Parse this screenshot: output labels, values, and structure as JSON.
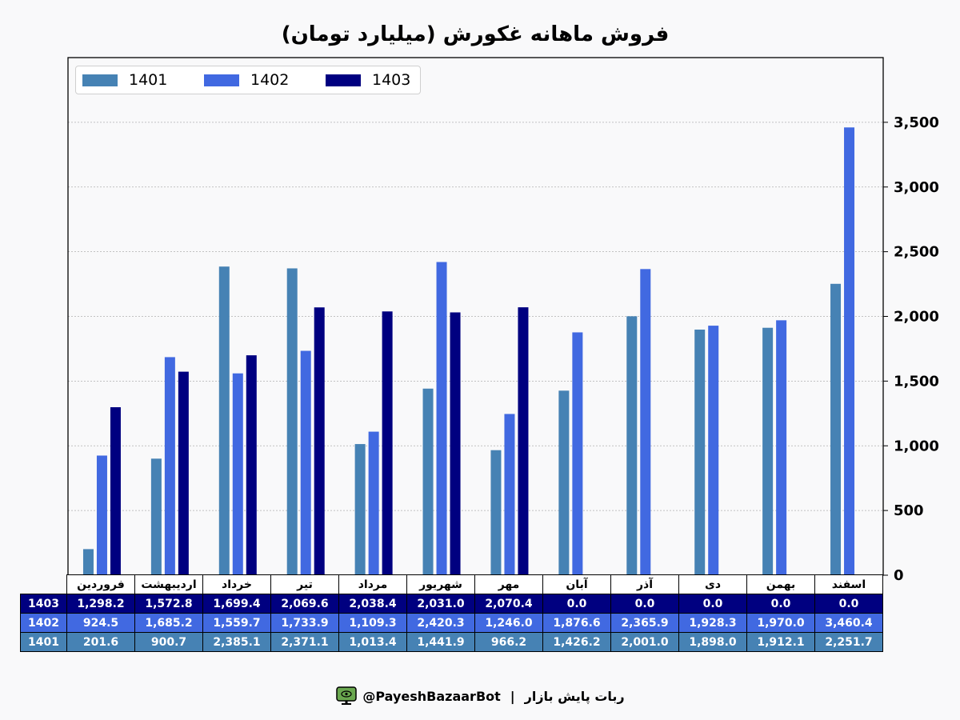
{
  "chart_data": {
    "type": "bar",
    "title": "فروش ماهانه غکورش (میلیارد تومان)",
    "categories": [
      "فروردین",
      "اردیبهشت",
      "خرداد",
      "تیر",
      "مرداد",
      "شهریور",
      "مهر",
      "آبان",
      "آذر",
      "دی",
      "بهمن",
      "اسفند"
    ],
    "series": [
      {
        "name": "1401",
        "color": "#4682b4",
        "values": [
          201.6,
          900.7,
          2385.1,
          2371.1,
          1013.4,
          1441.9,
          966.2,
          1426.2,
          2001.0,
          1898.0,
          1912.1,
          2251.7
        ]
      },
      {
        "name": "1402",
        "color": "#4169e1",
        "values": [
          924.5,
          1685.2,
          1559.7,
          1733.9,
          1109.3,
          2420.3,
          1246.0,
          1876.6,
          2365.9,
          1928.3,
          1970.0,
          3460.4
        ]
      },
      {
        "name": "1403",
        "color": "#000080",
        "values": [
          1298.2,
          1572.8,
          1699.4,
          2069.6,
          2038.4,
          2031.0,
          2070.4,
          0,
          0,
          0,
          0,
          0
        ]
      }
    ],
    "y_axis_position": "right",
    "ylim": [
      0,
      4000
    ],
    "yticks": [
      0,
      500,
      1000,
      1500,
      2000,
      2500,
      3000,
      3500
    ],
    "ytick_labels": [
      "0",
      "500",
      "1,000",
      "1,500",
      "2,000",
      "2,500",
      "3,000",
      "3,500"
    ],
    "grid": "horizontal-dotted",
    "legend_position": "top-left",
    "table": {
      "rows": [
        {
          "label": "1403",
          "color": "#000080",
          "cells": [
            "1,298.2",
            "1,572.8",
            "1,699.4",
            "2,069.6",
            "2,038.4",
            "2,031.0",
            "2,070.4",
            "0.0",
            "0.0",
            "0.0",
            "0.0",
            "0.0"
          ]
        },
        {
          "label": "1402",
          "color": "#4169e1",
          "cells": [
            "924.5",
            "1,685.2",
            "1,559.7",
            "1,733.9",
            "1,109.3",
            "2,420.3",
            "1,246.0",
            "1,876.6",
            "2,365.9",
            "1,928.3",
            "1,970.0",
            "3,460.4"
          ]
        },
        {
          "label": "1401",
          "color": "#4682b4",
          "cells": [
            "201.6",
            "900.7",
            "2,385.1",
            "2,371.1",
            "1,013.4",
            "1,441.9",
            "966.2",
            "1,426.2",
            "2,001.0",
            "1,898.0",
            "1,912.1",
            "2,251.7"
          ]
        }
      ]
    }
  },
  "footer": {
    "handle": "@PayeshBazaarBot",
    "separator": "|",
    "name": "ربات پایش بازار",
    "icon": "monitor-eye-icon"
  }
}
